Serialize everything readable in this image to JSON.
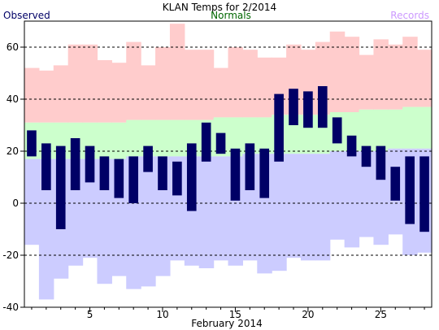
{
  "chart_data": {
    "type": "bar",
    "title": "KLAN Temps for 2/2014",
    "legend": {
      "observed": "Observed",
      "normals": "Normals",
      "records": "Records"
    },
    "xlabel": "February 2014",
    "ylabel": "",
    "xlim": [
      0.5,
      28.5
    ],
    "ylim": [
      -40,
      70
    ],
    "x_ticks": [
      5,
      10,
      15,
      20,
      25
    ],
    "y_ticks": [
      -40,
      -20,
      0,
      20,
      40,
      60
    ],
    "grid": "horizontal dashed at 20-degree intervals",
    "legend_placement": "top",
    "days": [
      1,
      2,
      3,
      4,
      5,
      6,
      7,
      8,
      9,
      10,
      11,
      12,
      13,
      14,
      15,
      16,
      17,
      18,
      19,
      20,
      21,
      22,
      23,
      24,
      25,
      26,
      27,
      28
    ],
    "observed_high": [
      28,
      23,
      22,
      25,
      22,
      18,
      17,
      18,
      22,
      18,
      16,
      23,
      31,
      27,
      21,
      23,
      21,
      42,
      44,
      43,
      45,
      33,
      26,
      22,
      22,
      14,
      18,
      18
    ],
    "observed_low": [
      18,
      5,
      -10,
      5,
      8,
      5,
      2,
      0,
      12,
      5,
      3,
      -3,
      16,
      19,
      1,
      5,
      2,
      16,
      30,
      29,
      29,
      23,
      18,
      14,
      9,
      1,
      -8,
      -11
    ],
    "normal_high": [
      31,
      31,
      31,
      31,
      31,
      31,
      31,
      32,
      32,
      32,
      32,
      32,
      32,
      33,
      33,
      33,
      33,
      34,
      34,
      34,
      34,
      35,
      35,
      36,
      36,
      36,
      37,
      37
    ],
    "normal_low": [
      17,
      17,
      17,
      17,
      17,
      17,
      17,
      18,
      18,
      18,
      18,
      18,
      18,
      18,
      18,
      19,
      19,
      19,
      19,
      19,
      19,
      20,
      20,
      20,
      20,
      21,
      21,
      21
    ],
    "record_high": [
      52,
      51,
      53,
      61,
      61,
      55,
      54,
      62,
      53,
      60,
      69,
      59,
      59,
      52,
      60,
      59,
      56,
      56,
      61,
      59,
      62,
      66,
      64,
      57,
      63,
      61,
      64,
      59
    ],
    "record_low": [
      -16,
      -37,
      -29,
      -24,
      -21,
      -31,
      -28,
      -33,
      -32,
      -28,
      -22,
      -24,
      -25,
      -22,
      -24,
      -22,
      -27,
      -26,
      -21,
      -22,
      -22,
      -14,
      -17,
      -13,
      -16,
      -12,
      -20,
      -19
    ],
    "colors": {
      "observed": "#000066",
      "normals": "#ccffcc",
      "normals_legend": "#006600",
      "record_high": "#ffcccc",
      "record_low": "#ccccff",
      "records_legend": "#cc99ff"
    }
  }
}
